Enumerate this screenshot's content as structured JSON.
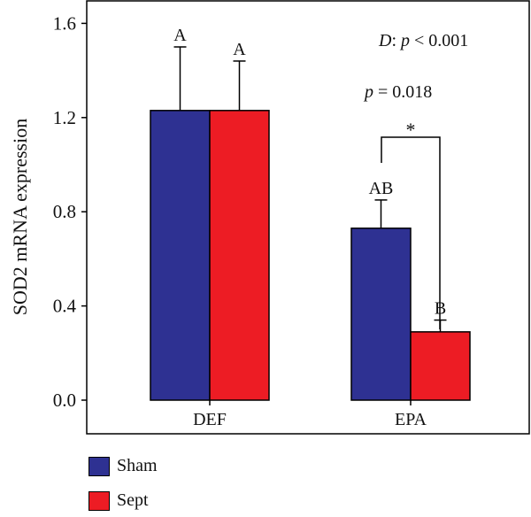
{
  "chart_data": {
    "type": "bar",
    "categories": [
      "DEF",
      "EPA"
    ],
    "series": [
      {
        "name": "Sham",
        "values": [
          1.23,
          0.73
        ],
        "errors": [
          0.27,
          0.12
        ],
        "letters": [
          "A",
          "AB"
        ],
        "color": "#2e3192"
      },
      {
        "name": "Sept",
        "values": [
          1.23,
          0.29
        ],
        "errors": [
          0.21,
          0.05
        ],
        "letters": [
          "A",
          "B"
        ],
        "color": "#ed1c24"
      }
    ],
    "ylabel": "SOD2 mRNA expression",
    "ylim": [
      0,
      1.6
    ],
    "yticks": [
      "0.0",
      "0.4",
      "0.8",
      "1.2",
      "1.6"
    ],
    "annotations": {
      "d_prefix": "D",
      "d_rest": ": ",
      "d_p": "p",
      "d_value": " < 0.001",
      "p_label": "p",
      "p_value": " = 0.018",
      "star": "*"
    },
    "legend": {
      "position": "bottom-left",
      "items": [
        "Sham",
        "Sept"
      ]
    }
  }
}
